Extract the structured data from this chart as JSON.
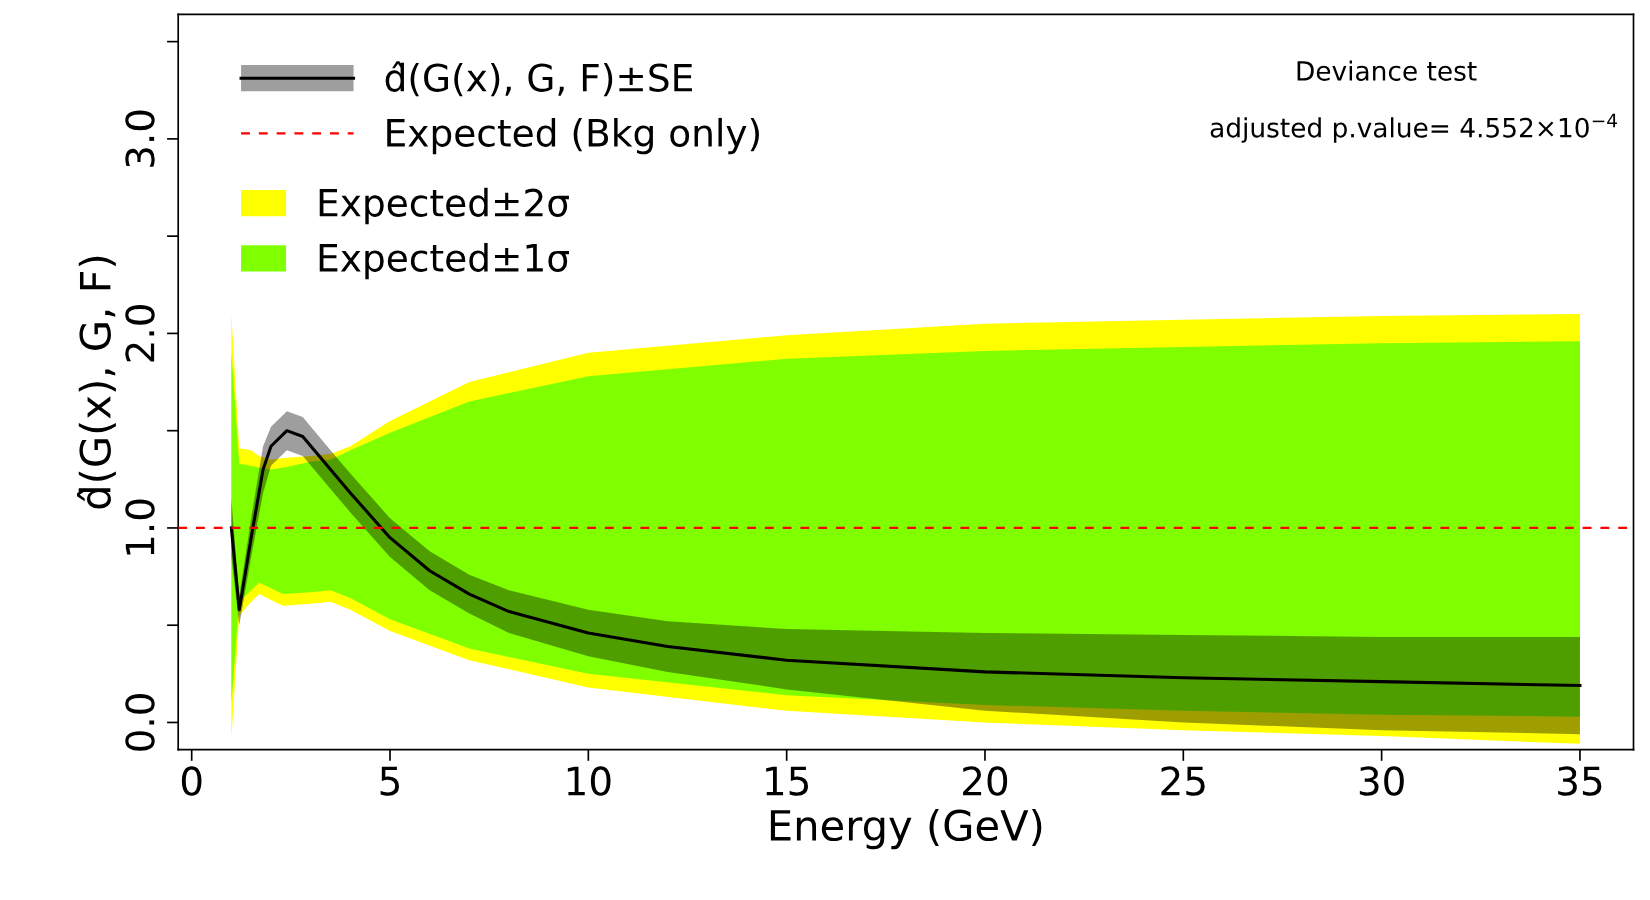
{
  "chart_data": {
    "type": "line",
    "xlabel": "Energy (GeV)",
    "ylabel": "d̂(G(x), G, F)",
    "xlim": [
      -0.34,
      36.35
    ],
    "ylim": [
      -0.14,
      3.64
    ],
    "xticks": [
      0,
      5,
      10,
      15,
      20,
      25,
      30,
      35
    ],
    "yticks": [
      {
        "value": 0.0,
        "label": "0.0"
      },
      {
        "value": 0.5,
        "label": null
      },
      {
        "value": 1.0,
        "label": "1.0"
      },
      {
        "value": 1.5,
        "label": null
      },
      {
        "value": 2.0,
        "label": "2.0"
      },
      {
        "value": 2.5,
        "label": null
      },
      {
        "value": 3.0,
        "label": "3.0"
      },
      {
        "value": 3.5,
        "label": null
      }
    ],
    "grid": false,
    "legend": "top left",
    "series": [
      {
        "name": "Expected±2σ",
        "type": "area",
        "color": "#ffff00",
        "x": [
          1,
          1.2,
          1.5,
          1.7,
          2,
          2.3,
          3,
          3.5,
          4,
          5,
          7,
          10,
          15,
          20,
          25,
          30,
          35
        ],
        "values": [
          null,
          null,
          null,
          null,
          null,
          null,
          null,
          null,
          null,
          null,
          null,
          null,
          null,
          null,
          null,
          null,
          null
        ],
        "lower": [
          -0.08,
          0.55,
          0.62,
          0.66,
          0.63,
          0.6,
          0.61,
          0.62,
          0.58,
          0.47,
          0.32,
          0.18,
          0.06,
          0.0,
          -0.04,
          -0.07,
          -0.11
        ],
        "upper": [
          2.1,
          1.41,
          1.4,
          1.37,
          1.35,
          1.36,
          1.37,
          1.38,
          1.42,
          1.55,
          1.75,
          1.9,
          1.99,
          2.05,
          2.07,
          2.09,
          2.1
        ]
      },
      {
        "name": "Expected±1σ",
        "type": "area",
        "color": "#7fff00",
        "x": [
          1,
          1.2,
          1.5,
          1.7,
          2,
          2.3,
          3,
          3.5,
          4,
          5,
          7,
          10,
          15,
          20,
          25,
          30,
          35
        ],
        "values": [
          null,
          null,
          null,
          null,
          null,
          null,
          null,
          null,
          null,
          null,
          null,
          null,
          null,
          null,
          null,
          null,
          null
        ],
        "lower": [
          0.1,
          0.62,
          0.68,
          0.72,
          0.69,
          0.66,
          0.67,
          0.68,
          0.64,
          0.53,
          0.38,
          0.25,
          0.14,
          0.09,
          0.06,
          0.04,
          0.03
        ],
        "upper": [
          1.9,
          1.33,
          1.32,
          1.31,
          1.3,
          1.31,
          1.34,
          1.35,
          1.4,
          1.49,
          1.65,
          1.78,
          1.87,
          1.91,
          1.93,
          1.95,
          1.96
        ]
      },
      {
        "name": "d̂(G(x), G, F)±SE",
        "type": "line",
        "color": "#000000",
        "x": [
          1,
          1.2,
          1.5,
          1.8,
          2,
          2.4,
          2.8,
          3.5,
          4,
          5,
          6,
          7,
          8,
          10,
          12,
          15,
          20,
          25,
          30,
          35
        ],
        "values": [
          1.0,
          0.58,
          0.95,
          1.3,
          1.42,
          1.5,
          1.47,
          1.3,
          1.18,
          0.95,
          0.78,
          0.66,
          0.57,
          0.46,
          0.39,
          0.32,
          0.26,
          0.23,
          0.21,
          0.19
        ],
        "lower": [
          0.85,
          0.5,
          0.85,
          1.18,
          1.32,
          1.4,
          1.37,
          1.2,
          1.08,
          0.85,
          0.68,
          0.56,
          0.46,
          0.34,
          0.26,
          0.17,
          0.06,
          0.0,
          -0.04,
          -0.06
        ],
        "upper": [
          1.15,
          0.65,
          1.05,
          1.42,
          1.52,
          1.6,
          1.57,
          1.4,
          1.28,
          1.05,
          0.88,
          0.76,
          0.68,
          0.58,
          0.52,
          0.48,
          0.46,
          0.45,
          0.44,
          0.44
        ]
      }
    ],
    "ref_lines": [
      {
        "axis": "y",
        "value": 1.0,
        "label": "Expected (Bkg only)",
        "color": "#ff0000",
        "line_style": "dashed"
      }
    ],
    "annotations": [
      "Deviance test",
      "adjusted p.value= 4.552×10$^{−4}$"
    ]
  }
}
